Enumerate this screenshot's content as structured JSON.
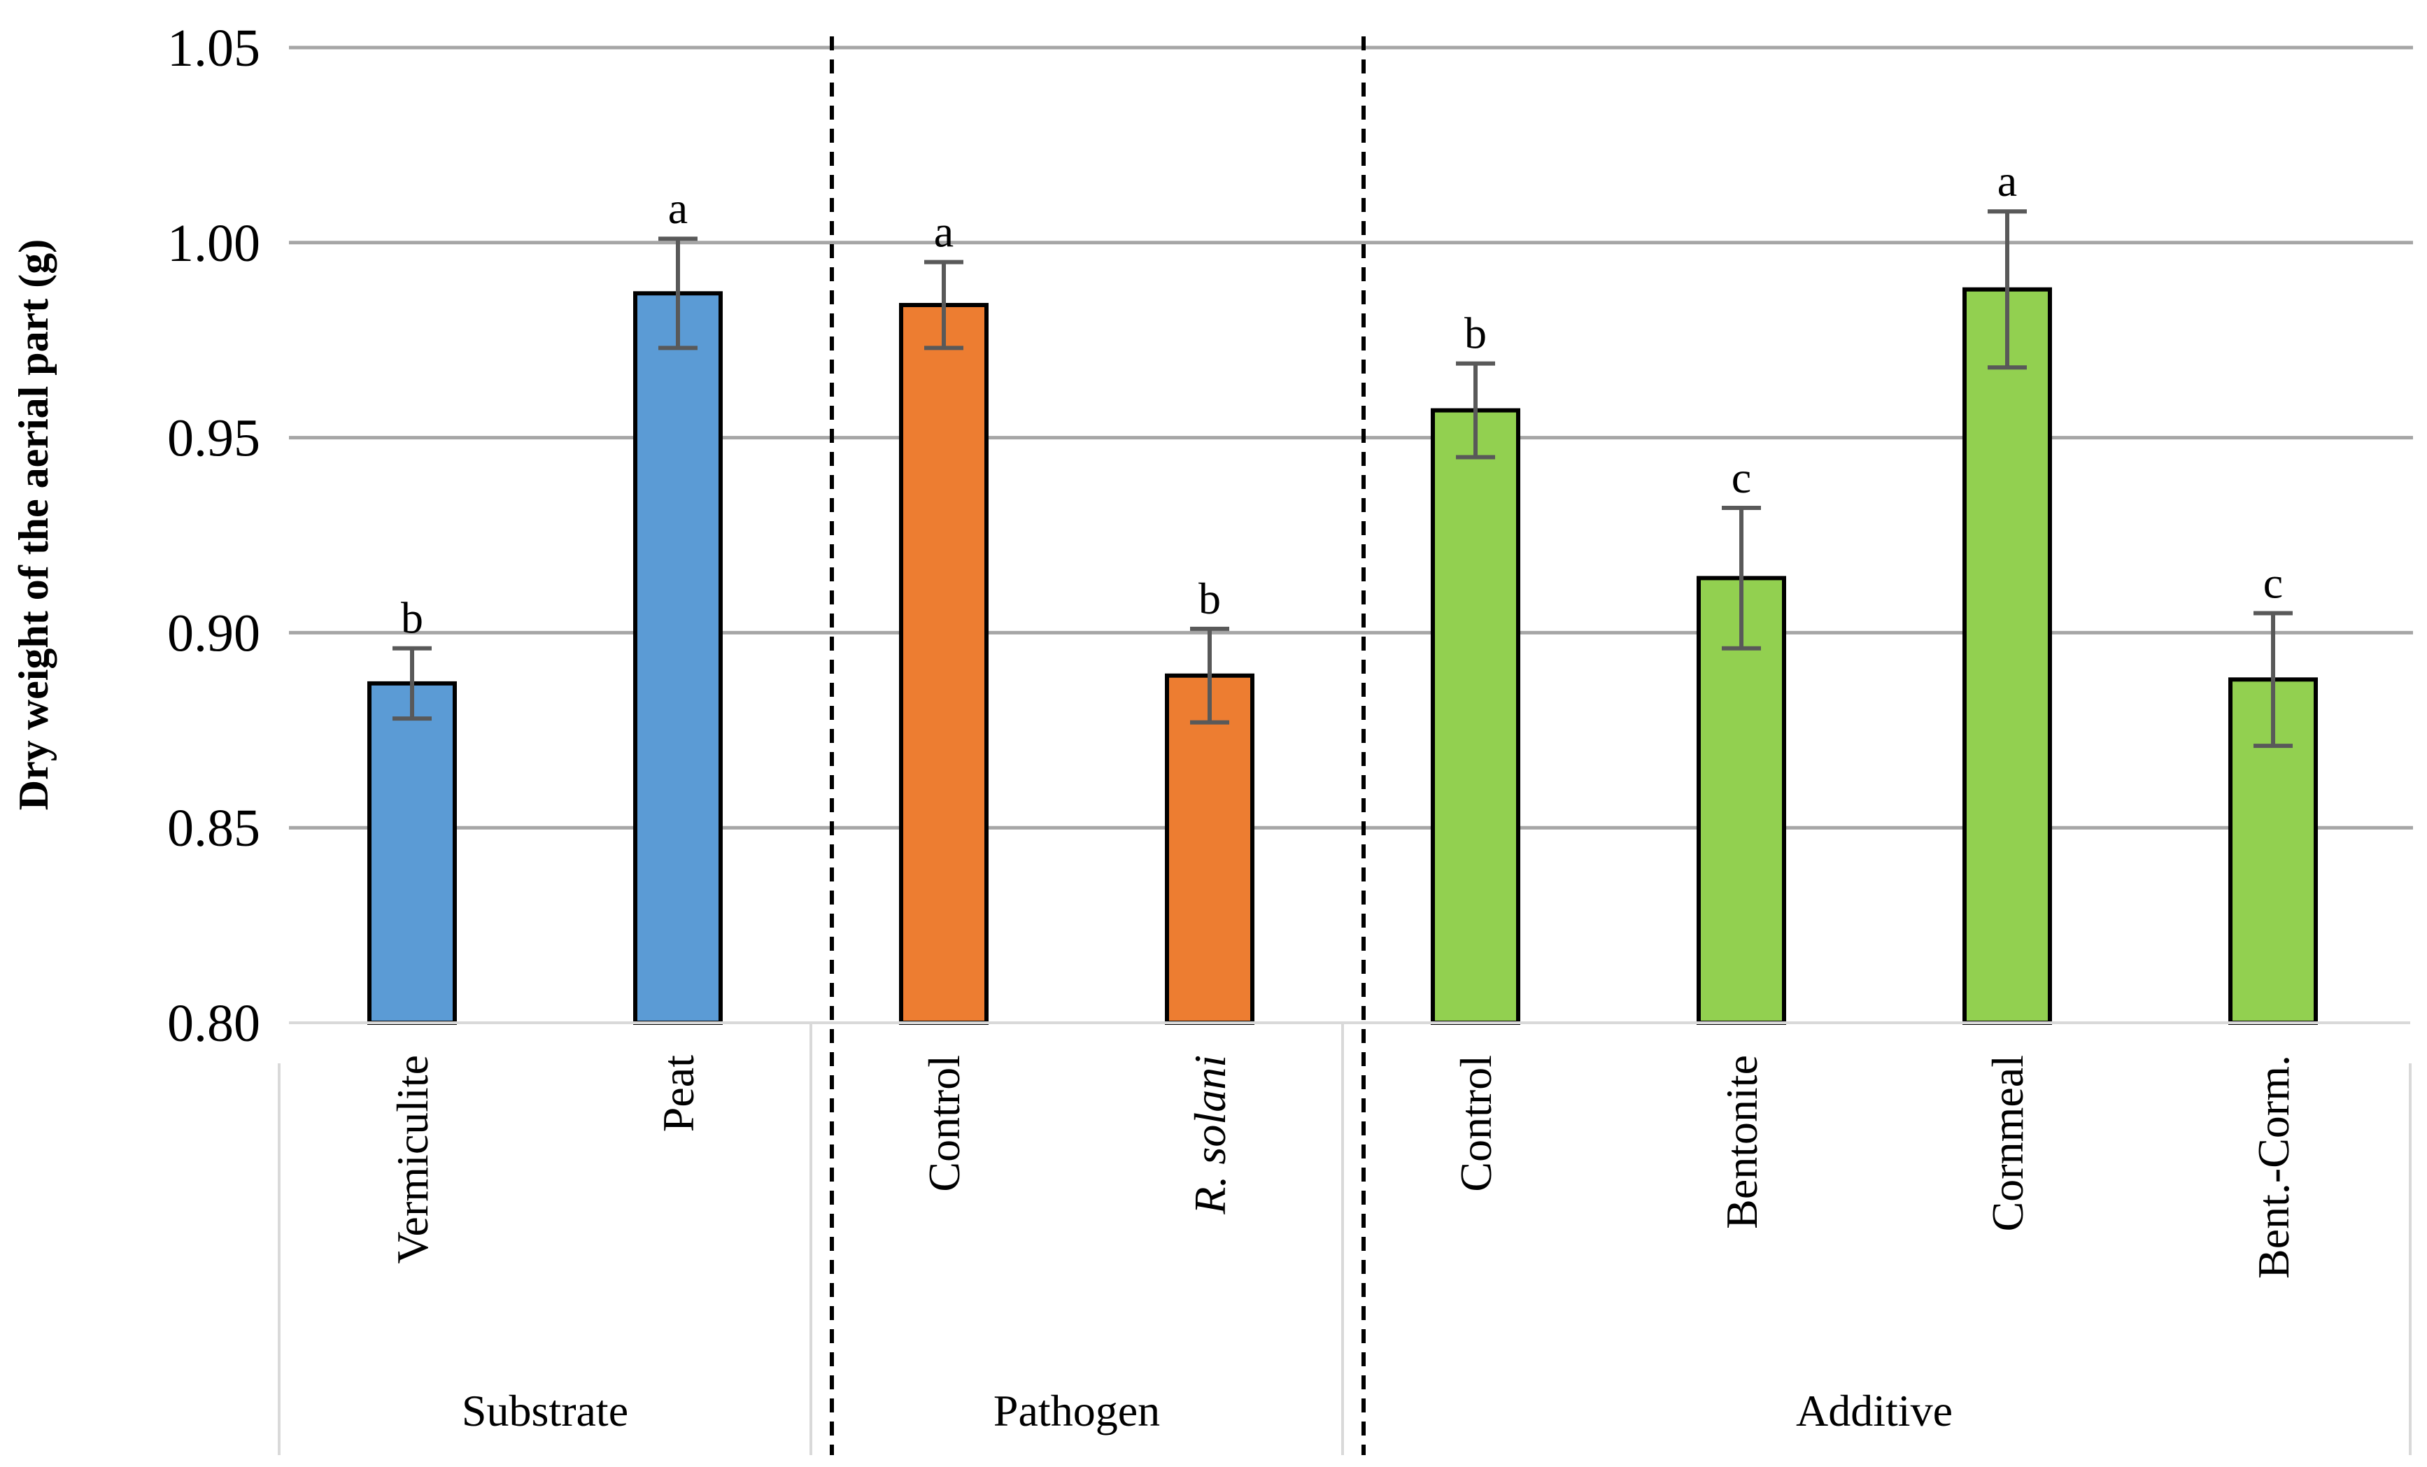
{
  "chart_data": {
    "type": "bar",
    "ylabel": "Dry weight of the aerial part (g)",
    "ylim": [
      0.8,
      1.05
    ],
    "yticks": [
      "0.80",
      "0.85",
      "0.90",
      "0.95",
      "1.00",
      "1.05"
    ],
    "grid": true,
    "groups": [
      {
        "name": "Substrate",
        "color": "#5B9BD5",
        "items": [
          {
            "label": "Vermiculite",
            "italic": false,
            "value": 0.887,
            "error": 0.009,
            "letter": "b"
          },
          {
            "label": "Peat",
            "italic": false,
            "value": 0.987,
            "error": 0.014,
            "letter": "a"
          }
        ]
      },
      {
        "name": "Pathogen",
        "color": "#ED7D31",
        "items": [
          {
            "label": "Control",
            "italic": false,
            "value": 0.984,
            "error": 0.011,
            "letter": "a"
          },
          {
            "label": "R. solani",
            "italic": true,
            "value": 0.889,
            "error": 0.012,
            "letter": "b"
          }
        ]
      },
      {
        "name": "Additive",
        "color": "#92D050",
        "items": [
          {
            "label": "Control",
            "italic": false,
            "value": 0.957,
            "error": 0.012,
            "letter": "b"
          },
          {
            "label": "Bentonite",
            "italic": false,
            "value": 0.914,
            "error": 0.018,
            "letter": "c"
          },
          {
            "label": "Cornmeal",
            "italic": false,
            "value": 0.988,
            "error": 0.02,
            "letter": "a"
          },
          {
            "label": "Bent.-Corm.",
            "italic": false,
            "value": 0.888,
            "error": 0.017,
            "letter": "c"
          }
        ]
      }
    ]
  },
  "colors": {
    "grid": "#A6A6A6",
    "bar_outline": "#000000",
    "error_bar": "#595959",
    "separator": "#000000",
    "category_box": "#D9D9D9"
  }
}
